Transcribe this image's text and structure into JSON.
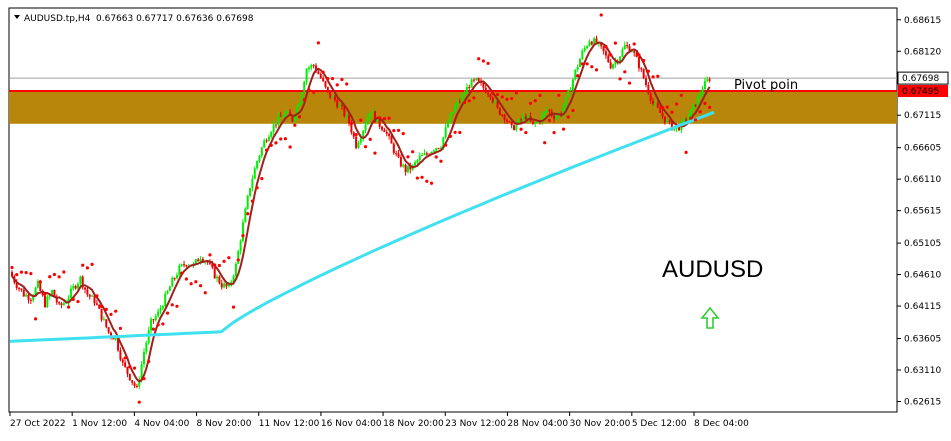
{
  "header": {
    "symbol_label": "AUDUSD.tp,H4",
    "ohlc_label": "0.67663 0.67717 0.67636 0.67698"
  },
  "chart_data": {
    "type": "candlestick",
    "symbol": "AUDUSD",
    "timeframe": "H4",
    "ohlc": {
      "open": 0.67663,
      "high": 0.67717,
      "low": 0.67636,
      "close": 0.67698
    },
    "price_axis": {
      "ticks": [
        "0.68615",
        "0.68120",
        "0.67115",
        "0.66605",
        "0.66110",
        "0.65615",
        "0.65105",
        "0.64610",
        "0.64115",
        "0.63605",
        "0.63110",
        "0.62615"
      ],
      "range": [
        0.6245,
        0.688
      ]
    },
    "time_axis": {
      "labels": [
        "27 Oct 2022",
        "1 Nov 12:00",
        "4 Nov 04:00",
        "8 Nov 20:00",
        "11 Nov 12:00",
        "16 Nov 04:00",
        "18 Nov 20:00",
        "23 Nov 12:00",
        "28 Nov 04:00",
        "30 Nov 20:00",
        "5 Dec 12:00",
        "8 Dec 04:00"
      ]
    },
    "current_price": {
      "value": 0.67698,
      "label": "0.67698",
      "color": "#000000"
    },
    "red_line": {
      "value": 0.67495,
      "label": "0.67495",
      "color": "#ff0000"
    },
    "zone": {
      "low": 0.6698,
      "high": 0.6748,
      "color": "#b8860b"
    },
    "pivot_label": "Pivot poin",
    "symbol_caption": "AUDUSD",
    "arrow_color": "#32cd32",
    "colors": {
      "bull": "#00ee00",
      "bear": "#ee0000",
      "ma_fast": "#a0201c",
      "ma_slow": "#40e0f0",
      "sar": "#ff0000"
    },
    "price_path": [
      0.6465,
      0.6445,
      0.643,
      0.6425,
      0.6445,
      0.6415,
      0.6435,
      0.641,
      0.642,
      0.644,
      0.6455,
      0.643,
      0.642,
      0.6395,
      0.637,
      0.636,
      0.632,
      0.63,
      0.628,
      0.634,
      0.6385,
      0.64,
      0.6425,
      0.645,
      0.647,
      0.648,
      0.6475,
      0.649,
      0.648,
      0.646,
      0.6445,
      0.644,
      0.6475,
      0.654,
      0.66,
      0.664,
      0.667,
      0.669,
      0.6705,
      0.6715,
      0.6705,
      0.6735,
      0.6785,
      0.679,
      0.677,
      0.6745,
      0.6735,
      0.672,
      0.67,
      0.6665,
      0.669,
      0.672,
      0.67,
      0.669,
      0.6665,
      0.664,
      0.6625,
      0.663,
      0.6645,
      0.665,
      0.666,
      0.6665,
      0.67,
      0.6725,
      0.674,
      0.676,
      0.6765,
      0.6755,
      0.6745,
      0.672,
      0.671,
      0.669,
      0.67,
      0.671,
      0.6695,
      0.6705,
      0.672,
      0.671,
      0.6715,
      0.6745,
      0.678,
      0.681,
      0.683,
      0.6825,
      0.681,
      0.679,
      0.68,
      0.682,
      0.6815,
      0.679,
      0.676,
      0.673,
      0.6715,
      0.67,
      0.669,
      0.6695,
      0.671,
      0.673,
      0.6755,
      0.677
    ]
  }
}
